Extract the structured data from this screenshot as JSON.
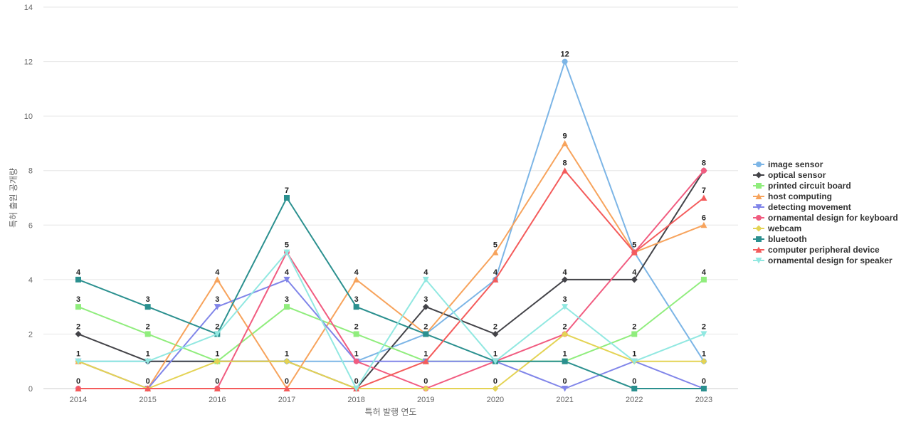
{
  "chart_data": {
    "type": "line",
    "title": "",
    "xlabel": "특허 발행 연도",
    "ylabel": "특허 출원 공개량",
    "x": [
      "2014",
      "2015",
      "2016",
      "2017",
      "2018",
      "2019",
      "2020",
      "2021",
      "2022",
      "2023"
    ],
    "ylim": [
      0,
      14
    ],
    "yticks": [
      0,
      2,
      4,
      6,
      8,
      10,
      12,
      14
    ],
    "grid": "horizontal",
    "legend_position": "right",
    "series": [
      {
        "name": "image sensor",
        "color": "#7cb5e6",
        "marker": "circle",
        "values": [
          1,
          1,
          1,
          1,
          1,
          2,
          4,
          12,
          5,
          1
        ]
      },
      {
        "name": "optical sensor",
        "color": "#434348",
        "marker": "diamond",
        "values": [
          2,
          1,
          1,
          1,
          0,
          3,
          2,
          4,
          4,
          8
        ]
      },
      {
        "name": "printed circuit board",
        "color": "#90ed7d",
        "marker": "square",
        "values": [
          3,
          2,
          1,
          3,
          2,
          1,
          1,
          1,
          2,
          4
        ]
      },
      {
        "name": "host computing",
        "color": "#f7a35c",
        "marker": "triangle",
        "values": [
          1,
          0,
          4,
          0,
          4,
          2,
          5,
          9,
          5,
          6
        ]
      },
      {
        "name": "detecting movement",
        "color": "#8085e9",
        "marker": "triangle-down",
        "values": [
          1,
          0,
          3,
          4,
          1,
          1,
          1,
          0,
          1,
          0
        ]
      },
      {
        "name": "ornamental design for keyboard",
        "color": "#f15c80",
        "marker": "circle",
        "values": [
          0,
          0,
          0,
          5,
          1,
          0,
          1,
          2,
          5,
          8
        ]
      },
      {
        "name": "webcam",
        "color": "#e4d354",
        "marker": "diamond",
        "values": [
          1,
          0,
          1,
          1,
          0,
          0,
          0,
          2,
          1,
          1
        ]
      },
      {
        "name": "bluetooth",
        "color": "#2b908f",
        "marker": "square",
        "values": [
          4,
          3,
          2,
          7,
          3,
          2,
          1,
          1,
          0,
          0
        ]
      },
      {
        "name": "computer peripheral device",
        "color": "#f45b5b",
        "marker": "triangle",
        "values": [
          0,
          0,
          0,
          0,
          0,
          1,
          4,
          8,
          5,
          7
        ]
      },
      {
        "name": "ornamental design for speaker",
        "color": "#91e8e1",
        "marker": "triangle-down",
        "values": [
          1,
          1,
          2,
          5,
          0,
          4,
          1,
          3,
          1,
          2
        ]
      }
    ]
  }
}
